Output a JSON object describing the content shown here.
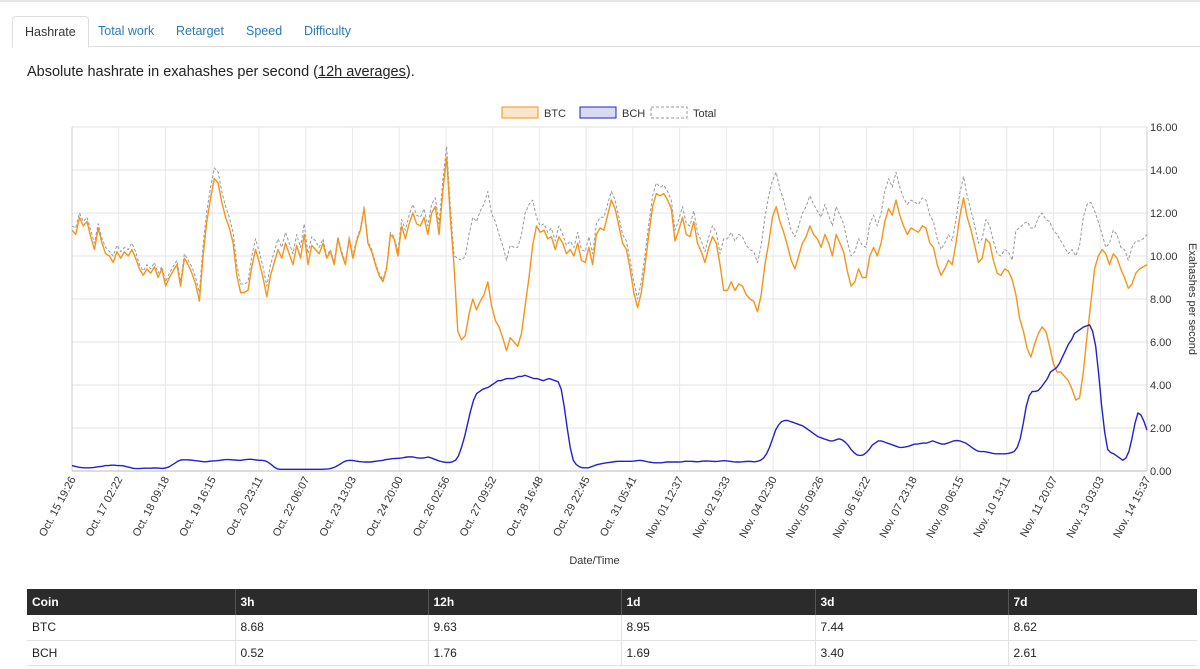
{
  "tabs": [
    {
      "label": "Hashrate",
      "active": true
    },
    {
      "label": "Total work",
      "active": false
    },
    {
      "label": "Retarget",
      "active": false
    },
    {
      "label": "Speed",
      "active": false
    },
    {
      "label": "Difficulty",
      "active": false
    }
  ],
  "subtitle": {
    "before": "Absolute hashrate in exahashes per second (",
    "link": "12h averages",
    "after": ")."
  },
  "chart_data": {
    "type": "line",
    "xlabel": "Date/Time",
    "ylabel": "Exahashes per second",
    "ylim": [
      0,
      16
    ],
    "yticks": [
      "0.00",
      "2.00",
      "4.00",
      "6.00",
      "8.00",
      "10.00",
      "12.00",
      "14.00",
      "16.00"
    ],
    "y_axis_side": "right",
    "grid": true,
    "legend_position": "top-center",
    "x_tick_labels": [
      "Oct. 15 19:26",
      "Oct. 17 02:22",
      "Oct. 18 09:18",
      "Oct. 19 16:15",
      "Oct. 20 23:11",
      "Oct. 22 06:07",
      "Oct. 23 13:03",
      "Oct. 24 20:00",
      "Oct. 26 02:56",
      "Oct. 27 09:52",
      "Oct. 28 16:48",
      "Oct. 29 22:45",
      "Oct. 31 05:41",
      "Nov. 01 12:37",
      "Nov. 02 19:33",
      "Nov. 04 02:30",
      "Nov. 05 09:26",
      "Nov. 06 16:22",
      "Nov. 07 23:18",
      "Nov. 09 06:15",
      "Nov. 10 13:11",
      "Nov. 11 20:07",
      "Nov. 13 03:03",
      "Nov. 14 15:37"
    ],
    "series": [
      {
        "name": "BTC",
        "color": "#f7931a",
        "fill": "#fde5cc",
        "dash": false,
        "values": [
          11.2,
          11.0,
          11.8,
          11.4,
          11.6,
          10.9,
          10.3,
          11.3,
          10.6,
          10.1,
          10.0,
          9.7,
          10.2,
          9.9,
          10.2,
          10.0,
          10.3,
          9.9,
          9.4,
          9.1,
          9.4,
          9.2,
          9.5,
          9.0,
          9.4,
          8.6,
          9.0,
          9.3,
          9.6,
          8.6,
          9.9,
          9.6,
          9.2,
          8.7,
          7.9,
          10.0,
          11.6,
          12.7,
          13.6,
          13.4,
          12.5,
          11.8,
          11.3,
          10.6,
          9.1,
          8.3,
          8.3,
          8.4,
          9.5,
          10.3,
          9.7,
          9.0,
          8.1,
          9.1,
          9.7,
          10.3,
          9.9,
          10.6,
          10.1,
          9.6,
          10.5,
          9.9,
          11.0,
          9.6,
          10.5,
          10.3,
          10.1,
          10.6,
          9.9,
          10.2,
          9.6,
          10.8,
          10.1,
          9.6,
          10.8,
          9.9,
          10.7,
          11.2,
          12.2,
          10.6,
          10.2,
          9.6,
          9.1,
          8.8,
          9.4,
          11.0,
          10.8,
          10.0,
          11.4,
          10.8,
          11.5,
          12.0,
          11.5,
          11.4,
          11.8,
          11.0,
          12.0,
          12.3,
          11.0,
          13.0,
          14.6,
          11.8,
          9.5,
          6.5,
          6.1,
          6.3,
          7.3,
          8.0,
          7.5,
          7.9,
          8.2,
          8.8,
          7.7,
          7.0,
          6.7,
          6.2,
          5.6,
          6.2,
          6.0,
          5.8,
          6.4,
          7.7,
          9.0,
          10.5,
          11.4,
          11.1,
          11.2,
          10.8,
          10.9,
          10.3,
          10.9,
          10.6,
          10.1,
          10.3,
          10.0,
          10.6,
          9.8,
          9.7,
          10.4,
          9.6,
          11.0,
          11.3,
          11.2,
          11.9,
          12.6,
          12.2,
          11.4,
          10.6,
          10.3,
          9.4,
          8.3,
          7.6,
          8.3,
          9.6,
          11.0,
          12.3,
          12.9,
          12.8,
          12.9,
          12.6,
          12.2,
          10.7,
          11.2,
          11.8,
          11.0,
          10.9,
          11.6,
          10.6,
          10.2,
          9.7,
          10.4,
          10.9,
          10.6,
          9.6,
          8.4,
          8.4,
          8.8,
          8.4,
          8.7,
          8.6,
          8.2,
          8.0,
          7.9,
          7.4,
          8.2,
          9.6,
          10.6,
          11.8,
          12.3,
          11.6,
          11.1,
          10.5,
          9.8,
          9.4,
          10.0,
          10.6,
          10.9,
          11.4,
          11.0,
          10.8,
          10.4,
          11.0,
          10.6,
          10.0,
          11.0,
          10.6,
          10.2,
          9.3,
          8.6,
          8.8,
          9.4,
          9.0,
          9.0,
          10.0,
          10.4,
          10.0,
          10.6,
          11.6,
          12.2,
          11.9,
          12.6,
          11.9,
          11.4,
          11.0,
          11.3,
          11.2,
          11.1,
          11.4,
          11.3,
          10.6,
          10.4,
          9.6,
          9.1,
          9.4,
          9.8,
          9.6,
          10.6,
          11.8,
          12.7,
          11.8,
          11.2,
          10.5,
          9.7,
          9.9,
          10.8,
          10.6,
          9.8,
          9.2,
          9.1,
          9.4,
          9.3,
          8.9,
          8.2,
          7.1,
          6.5,
          5.7,
          5.3,
          5.9,
          6.4,
          6.7,
          6.5,
          5.8,
          5.0,
          4.6,
          4.6,
          4.4,
          4.2,
          3.8,
          3.3,
          3.4,
          4.6,
          6.3,
          7.8,
          9.4,
          10.0,
          10.3,
          10.1,
          9.6,
          10.1,
          9.9,
          9.4,
          9.0,
          8.5,
          8.7,
          9.2,
          9.4,
          9.5,
          9.6
        ]
      },
      {
        "name": "BCH",
        "color": "#2222cc",
        "fill": "#dadaf5",
        "dash": false,
        "values": [
          0.25,
          0.22,
          0.18,
          0.16,
          0.15,
          0.15,
          0.15,
          0.16,
          0.18,
          0.2,
          0.22,
          0.25,
          0.25,
          0.27,
          0.27,
          0.25,
          0.25,
          0.24,
          0.2,
          0.17,
          0.13,
          0.11,
          0.11,
          0.12,
          0.13,
          0.13,
          0.13,
          0.14,
          0.14,
          0.13,
          0.12,
          0.14,
          0.18,
          0.27,
          0.36,
          0.45,
          0.51,
          0.52,
          0.52,
          0.51,
          0.5,
          0.48,
          0.46,
          0.44,
          0.43,
          0.44,
          0.46,
          0.47,
          0.48,
          0.5,
          0.52,
          0.53,
          0.53,
          0.52,
          0.51,
          0.5,
          0.5,
          0.52,
          0.54,
          0.55,
          0.53,
          0.51,
          0.5,
          0.5,
          0.47,
          0.4,
          0.3,
          0.18,
          0.1,
          0.08,
          0.08,
          0.08,
          0.08,
          0.08,
          0.08,
          0.08,
          0.08,
          0.08,
          0.08,
          0.08,
          0.08,
          0.08,
          0.08,
          0.08,
          0.09,
          0.1,
          0.13,
          0.18,
          0.25,
          0.34,
          0.43,
          0.48,
          0.5,
          0.49,
          0.46,
          0.44,
          0.43,
          0.42,
          0.42,
          0.42,
          0.44,
          0.46,
          0.48,
          0.5,
          0.53,
          0.55,
          0.57,
          0.58,
          0.59,
          0.6,
          0.63,
          0.65,
          0.66,
          0.65,
          0.62,
          0.6,
          0.6,
          0.62,
          0.65,
          0.61,
          0.55,
          0.5,
          0.45,
          0.42,
          0.4,
          0.4,
          0.43,
          0.5,
          0.7,
          1.1,
          1.6,
          2.2,
          2.8,
          3.3,
          3.6,
          3.7,
          3.8,
          3.85,
          3.9,
          4.0,
          4.1,
          4.2,
          4.2,
          4.25,
          4.3,
          4.3,
          4.3,
          4.35,
          4.4,
          4.4,
          4.45,
          4.4,
          4.35,
          4.3,
          4.3,
          4.25,
          4.2,
          4.25,
          4.3,
          4.25,
          4.2,
          4.15,
          3.8,
          3.0,
          2.0,
          1.1,
          0.5,
          0.3,
          0.2,
          0.15,
          0.15,
          0.15,
          0.2,
          0.25,
          0.3,
          0.33,
          0.36,
          0.38,
          0.4,
          0.42,
          0.44,
          0.45,
          0.45,
          0.45,
          0.45,
          0.45,
          0.46,
          0.48,
          0.5,
          0.48,
          0.45,
          0.42,
          0.4,
          0.38,
          0.38,
          0.38,
          0.4,
          0.42,
          0.42,
          0.42,
          0.42,
          0.42,
          0.43,
          0.45,
          0.45,
          0.45,
          0.44,
          0.43,
          0.44,
          0.46,
          0.47,
          0.46,
          0.45,
          0.44,
          0.45,
          0.47,
          0.48,
          0.47,
          0.45,
          0.43,
          0.42,
          0.42,
          0.43,
          0.44,
          0.45,
          0.44,
          0.43,
          0.45,
          0.5,
          0.6,
          0.8,
          1.1,
          1.5,
          1.9,
          2.15,
          2.3,
          2.35,
          2.35,
          2.3,
          2.25,
          2.2,
          2.15,
          2.1,
          2.0,
          1.9,
          1.8,
          1.7,
          1.6,
          1.55,
          1.5,
          1.45,
          1.4,
          1.4,
          1.45,
          1.5,
          1.45,
          1.35,
          1.2,
          1.0,
          0.85,
          0.75,
          0.72,
          0.75,
          0.85,
          1.0,
          1.2,
          1.3,
          1.4,
          1.4,
          1.35,
          1.3,
          1.25,
          1.2,
          1.15,
          1.1,
          1.1,
          1.12,
          1.15,
          1.2,
          1.25,
          1.25,
          1.28,
          1.3,
          1.3,
          1.35,
          1.4,
          1.35,
          1.3,
          1.25,
          1.25,
          1.3,
          1.35,
          1.4,
          1.42,
          1.4,
          1.35,
          1.3,
          1.2,
          1.1,
          1.0,
          0.92,
          0.9,
          0.9,
          0.88,
          0.85,
          0.82,
          0.8,
          0.8,
          0.8,
          0.8,
          0.82,
          0.85,
          0.9,
          1.1,
          1.5,
          2.2,
          3.0,
          3.5,
          3.7,
          3.7,
          3.75,
          3.9,
          4.1,
          4.3,
          4.6,
          4.7,
          4.8,
          5.0,
          5.3,
          5.6,
          5.9,
          6.1,
          6.4,
          6.5,
          6.6,
          6.7,
          6.75,
          6.8,
          6.5,
          5.8,
          4.5,
          3.0,
          1.8,
          1.0,
          0.85,
          0.8,
          0.7,
          0.6,
          0.5,
          0.6,
          0.9,
          1.5,
          2.2,
          2.7,
          2.6,
          2.3,
          1.9
        ]
      },
      {
        "name": "Total",
        "color": "#999999",
        "fill": "#ffffff",
        "dash": true,
        "values": [
          11.4,
          11.3,
          12.0,
          11.6,
          11.8,
          11.2,
          10.6,
          11.5,
          10.8,
          10.4,
          10.2,
          10.0,
          10.5,
          10.2,
          10.4,
          10.3,
          10.6,
          10.2,
          9.6,
          9.3,
          9.6,
          9.4,
          9.7,
          9.2,
          9.5,
          8.8,
          9.2,
          9.5,
          9.8,
          8.8,
          10.1,
          9.8,
          9.5,
          9.0,
          8.3,
          10.5,
          12.1,
          13.2,
          14.1,
          13.9,
          13.0,
          12.3,
          11.8,
          11.1,
          9.6,
          8.7,
          8.7,
          8.8,
          10.0,
          10.8,
          10.2,
          9.5,
          8.6,
          9.6,
          10.2,
          10.8,
          10.4,
          11.1,
          10.6,
          10.1,
          11.0,
          10.4,
          11.5,
          10.1,
          10.9,
          10.7,
          10.4,
          10.8,
          10.0,
          10.3,
          9.7,
          10.9,
          10.2,
          9.7,
          10.9,
          10.0,
          10.8,
          11.3,
          12.3,
          10.7,
          10.3,
          9.7,
          9.2,
          8.9,
          9.5,
          11.1,
          10.9,
          10.2,
          11.7,
          11.2,
          11.9,
          12.4,
          11.9,
          11.8,
          12.2,
          11.4,
          12.4,
          12.7,
          11.5,
          13.5,
          15.1,
          12.3,
          10.0,
          9.9,
          9.8,
          10.0,
          11.0,
          11.8,
          11.6,
          12.1,
          12.4,
          13.0,
          12.0,
          11.6,
          11.0,
          10.5,
          9.8,
          10.5,
          10.4,
          10.4,
          11.0,
          12.0,
          12.4,
          12.6,
          11.8,
          11.4,
          11.5,
          11.1,
          11.3,
          10.7,
          11.4,
          11.0,
          10.5,
          10.7,
          10.4,
          11.1,
          10.3,
          10.2,
          10.9,
          10.1,
          11.5,
          11.8,
          11.8,
          12.4,
          13.0,
          12.6,
          11.8,
          11.0,
          10.7,
          9.8,
          8.8,
          8.0,
          8.8,
          10.1,
          11.5,
          12.8,
          13.4,
          13.2,
          13.3,
          13.0,
          12.6,
          11.2,
          11.7,
          12.3,
          11.5,
          11.4,
          12.1,
          11.1,
          10.7,
          10.2,
          10.9,
          11.4,
          11.1,
          10.1,
          10.8,
          10.8,
          11.1,
          10.7,
          11.0,
          10.9,
          10.5,
          10.3,
          10.2,
          9.7,
          10.5,
          11.8,
          12.8,
          13.5,
          13.9,
          13.1,
          12.6,
          11.9,
          11.2,
          10.9,
          11.4,
          12.0,
          12.3,
          12.8,
          12.4,
          12.1,
          11.8,
          12.4,
          11.9,
          11.4,
          12.3,
          11.9,
          11.5,
          10.7,
          10.0,
          10.2,
          10.8,
          10.5,
          10.4,
          11.5,
          11.9,
          11.4,
          12.0,
          13.0,
          13.6,
          13.2,
          13.9,
          13.2,
          12.7,
          12.4,
          12.6,
          12.5,
          12.4,
          12.7,
          12.6,
          11.9,
          11.6,
          10.8,
          10.3,
          10.6,
          11.0,
          10.7,
          11.7,
          12.9,
          13.7,
          12.8,
          12.1,
          11.4,
          10.6,
          10.8,
          11.7,
          11.4,
          10.7,
          10.1,
          10.0,
          10.3,
          10.2,
          9.8,
          11.2,
          11.3,
          11.5,
          11.6,
          11.3,
          11.3,
          11.8,
          12.0,
          11.7,
          11.6,
          11.2,
          11.0,
          10.7,
          10.4,
          10.1,
          10.3,
          10.0,
          10.5,
          11.8,
          12.4,
          12.5,
          12.1,
          11.6,
          11.0,
          10.4,
          10.6,
          11.2,
          11.0,
          10.4,
          10.3,
          9.8,
          10.4,
          10.7,
          10.7,
          10.8,
          11.0
        ]
      }
    ]
  },
  "table": {
    "headers": [
      "Coin",
      "3h",
      "12h",
      "1d",
      "3d",
      "7d"
    ],
    "rows": [
      [
        "BTC",
        "8.68",
        "9.63",
        "8.95",
        "7.44",
        "8.62"
      ],
      [
        "BCH",
        "0.52",
        "1.76",
        "1.69",
        "3.40",
        "2.61"
      ]
    ]
  }
}
